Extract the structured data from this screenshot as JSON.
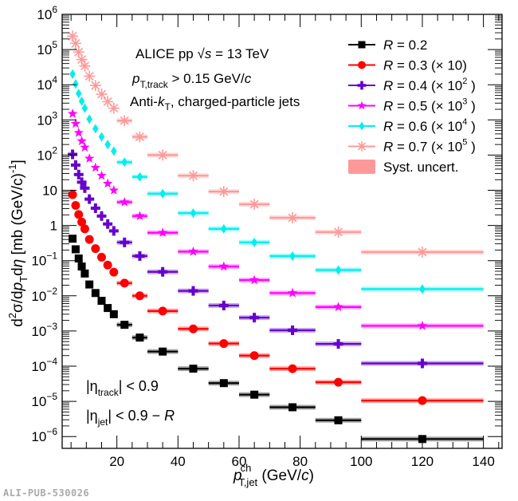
{
  "chart_data": {
    "type": "scatter",
    "title": "",
    "xlabel": "p_T,jet^ch (GeV/c)",
    "xlabel_main": "p",
    "xlabel_sup": "ch",
    "xlabel_sub": "T,jet",
    "xlabel_unit": " (GeV/",
    "xlabel_unit_c": "c",
    "xlabel_close": ")",
    "ylabel": "d²σ/dp_T dη [mb (GeV/c)⁻¹]",
    "xlim": [
      0,
      145
    ],
    "ylim": [
      1e-06,
      1000000.0
    ],
    "yscale": "log",
    "xticks": [
      20,
      40,
      60,
      80,
      100,
      120,
      140
    ],
    "yticks": [
      {
        "value": 1e-06,
        "base": "10",
        "exp": "−6"
      },
      {
        "value": 1e-05,
        "base": "10",
        "exp": "−5"
      },
      {
        "value": 0.0001,
        "base": "10",
        "exp": "−4"
      },
      {
        "value": 0.001,
        "base": "10",
        "exp": "−3"
      },
      {
        "value": 0.01,
        "base": "10",
        "exp": "−2"
      },
      {
        "value": 0.1,
        "base": "10",
        "exp": "−1"
      },
      {
        "value": 1,
        "base": "1",
        "exp": ""
      },
      {
        "value": 10,
        "base": "10",
        "exp": ""
      },
      {
        "value": 100.0,
        "base": "10",
        "exp": "2"
      },
      {
        "value": 1000.0,
        "base": "10",
        "exp": "3"
      },
      {
        "value": 10000.0,
        "base": "10",
        "exp": "4"
      },
      {
        "value": 100000.0,
        "base": "10",
        "exp": "5"
      },
      {
        "value": 1000000.0,
        "base": "10",
        "exp": "6"
      }
    ],
    "grid": false,
    "legend_placement": "top-right",
    "annotations": {
      "line1": "ALICE pp √s = 13 TeV",
      "line1_a": "ALICE pp ",
      "line1_sqrt": "√",
      "line1_s": "s",
      "line1_b": " = 13 TeV",
      "line2_p": "p",
      "line2_sub": "T,track",
      "line2_rest": " > 0.15 GeV/",
      "line2_c": "c",
      "line3_a": "Anti-",
      "line3_k": "k",
      "line3_sub": "T",
      "line3_b": ", charged-particle jets",
      "eta_track_a": "|η",
      "eta_track_sub": "track",
      "eta_track_b": "| < 0.9",
      "eta_jet_a": "|η",
      "eta_jet_sub": "jet",
      "eta_jet_b": "| < 0.9 − ",
      "eta_jet_R": "R"
    },
    "bins": [
      [
        5,
        6
      ],
      [
        6,
        7
      ],
      [
        7,
        8
      ],
      [
        8,
        9
      ],
      [
        9,
        10
      ],
      [
        10,
        12
      ],
      [
        12,
        14
      ],
      [
        14,
        16
      ],
      [
        16,
        18
      ],
      [
        18,
        20
      ],
      [
        20,
        25
      ],
      [
        25,
        30
      ],
      [
        30,
        40
      ],
      [
        40,
        50
      ],
      [
        50,
        60
      ],
      [
        60,
        70
      ],
      [
        70,
        85
      ],
      [
        85,
        100
      ],
      [
        100,
        140
      ]
    ],
    "series": [
      {
        "name": "R = 0.2",
        "label_R": "R",
        "label_val": " = 0.2",
        "scale": "",
        "scale_exp": "",
        "color": "#000000",
        "marker": "square",
        "values": [
          0.42,
          0.21,
          0.115,
          0.068,
          0.043,
          0.021,
          0.012,
          0.0072,
          0.0045,
          0.003,
          0.0015,
          0.00065,
          0.00026,
          8.5e-05,
          3.3e-05,
          1.55e-05,
          6.8e-06,
          2.9e-06,
          8.5e-07
        ]
      },
      {
        "name": "R = 0.3 (× 10)",
        "label_R": "R",
        "label_val": " = 0.3",
        "scale": "(×  10)",
        "scale_exp": "",
        "color": "#ff0000",
        "marker": "circle",
        "values": [
          7.5,
          3.7,
          2.05,
          1.25,
          0.8,
          0.4,
          0.22,
          0.125,
          0.075,
          0.047,
          0.023,
          0.01,
          0.0037,
          0.00115,
          0.00044,
          0.0002,
          8.5e-05,
          3.5e-05,
          1.05e-05
        ]
      },
      {
        "name": "R = 0.4 (× 10²)",
        "label_R": "R",
        "label_val": " = 0.4",
        "scale": "(×  10",
        "scale_exp": "2",
        "color": "#6600cc",
        "marker": "cross",
        "values": [
          105,
          52,
          28,
          17,
          11.5,
          5.6,
          3.1,
          1.85,
          1.1,
          0.7,
          0.33,
          0.135,
          0.048,
          0.0138,
          0.0053,
          0.0024,
          0.00105,
          0.00043,
          0.00012
        ]
      },
      {
        "name": "R = 0.5 (× 10³)",
        "label_R": "R",
        "label_val": " = 0.5",
        "scale": "(×  10",
        "scale_exp": "3",
        "color": "#ff00ff",
        "marker": "star",
        "values": [
          1500,
          780,
          430,
          250,
          165,
          80,
          44,
          26,
          15.5,
          10.0,
          4.6,
          1.85,
          0.62,
          0.18,
          0.068,
          0.028,
          0.012,
          0.0048,
          0.0014
        ]
      },
      {
        "name": "R = 0.6 (× 10⁴)",
        "label_R": "R",
        "label_val": " = 0.6",
        "scale": "(×  10",
        "scale_exp": "4",
        "color": "#00eeee",
        "marker": "diamond",
        "values": [
          20000,
          10500,
          5600,
          3400,
          2150,
          1050,
          560,
          330,
          200,
          130,
          63,
          24,
          8.0,
          2.25,
          0.8,
          0.33,
          0.135,
          0.054,
          0.0155
        ]
      },
      {
        "name": "R = 0.7 (× 10⁵)",
        "label_R": "R",
        "label_val": " = 0.7",
        "scale": "(×  10",
        "scale_exp": "5",
        "color": "#ff9999",
        "marker": "asterisk",
        "values": [
          240000,
          150000,
          85000,
          52000,
          34000,
          17500,
          9500,
          5400,
          3300,
          2150,
          950,
          330,
          100,
          26,
          9.2,
          4.0,
          1.65,
          0.65,
          0.175
        ]
      }
    ],
    "syst_label": "Syst. uncert.",
    "syst_color": "#ff9999"
  },
  "watermark": "ALI-PUB-530026"
}
